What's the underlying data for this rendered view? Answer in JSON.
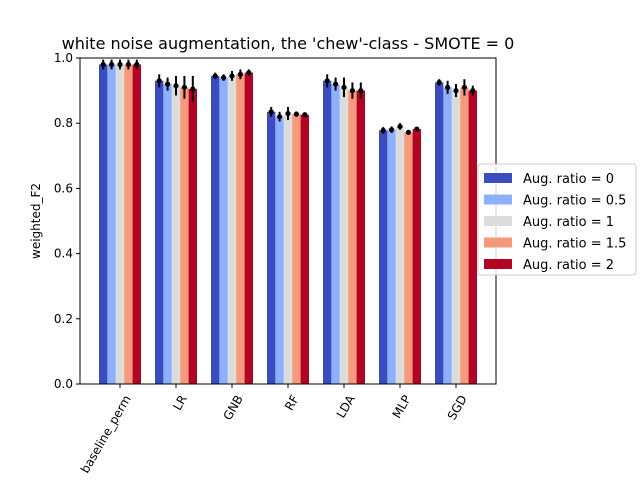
{
  "chart_data": {
    "type": "bar",
    "title": "white noise augmentation, the 'chew'-class - SMOTE = 0",
    "xlabel": "",
    "ylabel": "weighted_F2",
    "ylim": [
      0,
      1.0
    ],
    "yticks": [
      "0.0",
      "0.2",
      "0.4",
      "0.6",
      "0.8",
      "1.0"
    ],
    "categories": [
      "baseline_perm",
      "LR",
      "GNB",
      "RF",
      "LDA",
      "MLP",
      "SGD"
    ],
    "error_bars": true,
    "grid": false,
    "legend_position": "right",
    "series": [
      {
        "name": "Aug. ratio = 0",
        "color": "#3b4cc0",
        "values": [
          0.98,
          0.93,
          0.945,
          0.835,
          0.93,
          0.778,
          0.925
        ],
        "errors": [
          0.015,
          0.02,
          0.01,
          0.015,
          0.02,
          0.01,
          0.01
        ]
      },
      {
        "name": "Aug. ratio = 0.5",
        "color": "#8db0fe",
        "values": [
          0.98,
          0.92,
          0.94,
          0.82,
          0.92,
          0.78,
          0.91
        ],
        "errors": [
          0.015,
          0.02,
          0.01,
          0.015,
          0.02,
          0.01,
          0.02
        ]
      },
      {
        "name": "Aug. ratio = 1",
        "color": "#dddcdc",
        "values": [
          0.98,
          0.915,
          0.945,
          0.83,
          0.91,
          0.79,
          0.9
        ],
        "errors": [
          0.015,
          0.03,
          0.015,
          0.02,
          0.03,
          0.01,
          0.02
        ]
      },
      {
        "name": "Aug. ratio = 1.5",
        "color": "#f49a7b",
        "values": [
          0.98,
          0.91,
          0.95,
          0.828,
          0.9,
          0.772,
          0.91
        ],
        "errors": [
          0.015,
          0.035,
          0.015,
          0.008,
          0.025,
          0.005,
          0.025
        ]
      },
      {
        "name": "Aug. ratio = 2",
        "color": "#b40426",
        "values": [
          0.98,
          0.905,
          0.955,
          0.826,
          0.9,
          0.782,
          0.9
        ],
        "errors": [
          0.015,
          0.04,
          0.01,
          0.005,
          0.025,
          0.005,
          0.015
        ]
      }
    ]
  }
}
